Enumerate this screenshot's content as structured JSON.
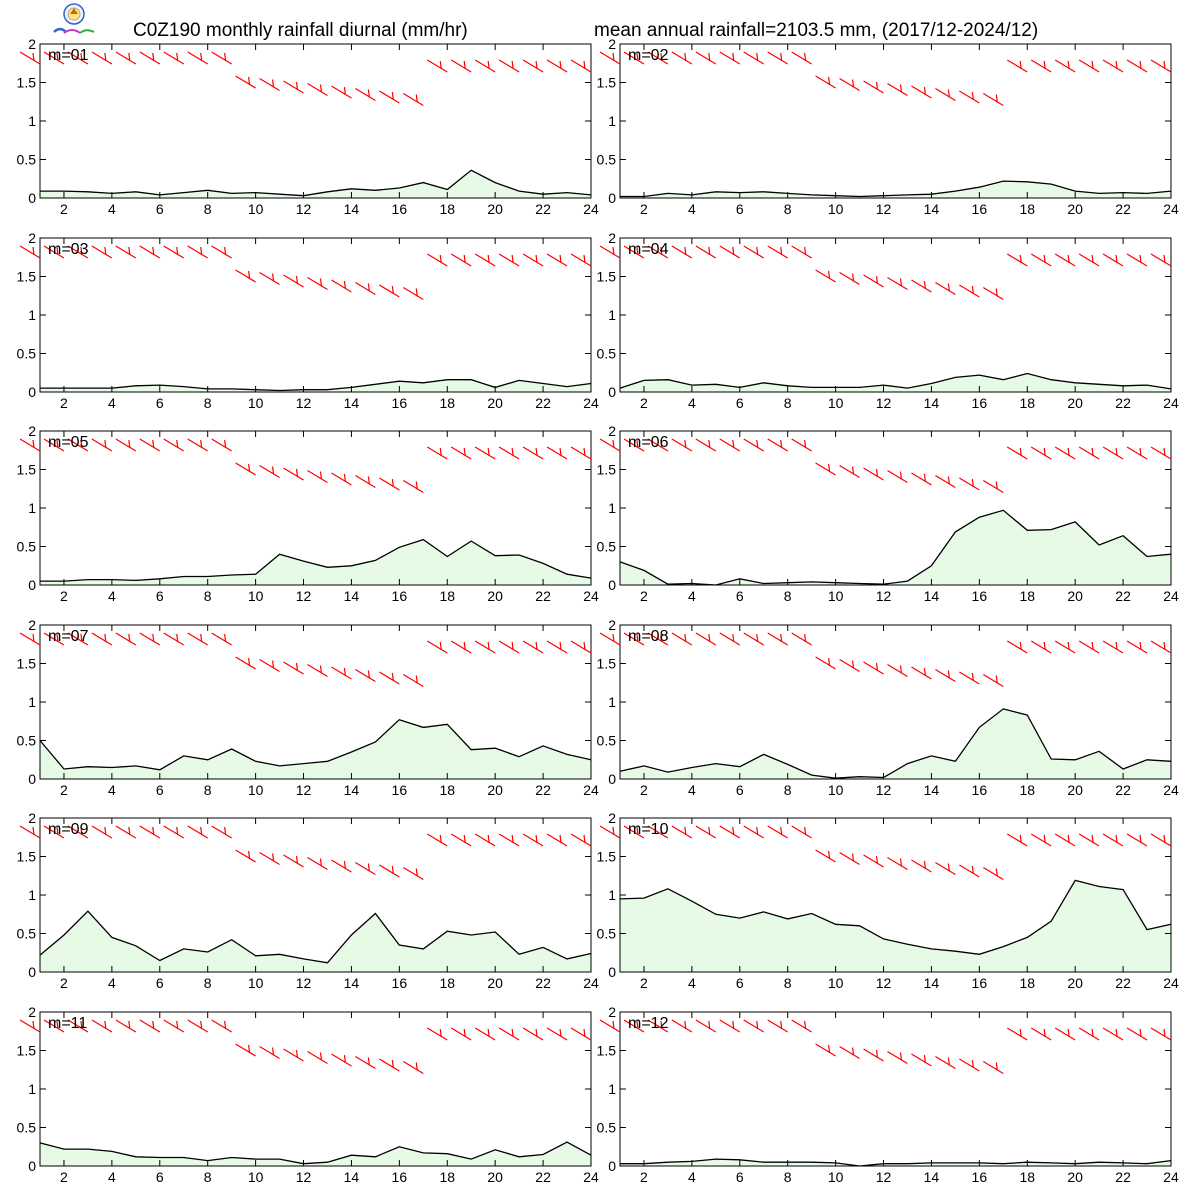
{
  "header": {
    "title_left": "C0Z190 monthly rainfall diurnal (mm/hr)",
    "title_right": "mean annual rainfall=2103.5 mm, (2017/12-2024/12)",
    "logo_icon": "lab-logo-icon"
  },
  "colors": {
    "fill": "#e6fae6",
    "line": "#000000",
    "barb": "#ff0000"
  },
  "chart_data": [
    {
      "type": "area",
      "label": "m=01",
      "x": [
        1,
        2,
        3,
        4,
        5,
        6,
        7,
        8,
        9,
        10,
        11,
        12,
        13,
        14,
        15,
        16,
        17,
        18,
        19,
        20,
        21,
        22,
        23,
        24
      ],
      "values": [
        0.09,
        0.09,
        0.08,
        0.06,
        0.08,
        0.04,
        0.07,
        0.1,
        0.06,
        0.07,
        0.05,
        0.03,
        0.08,
        0.12,
        0.1,
        0.13,
        0.2,
        0.11,
        0.36,
        0.2,
        0.09,
        0.05,
        0.07,
        0.04
      ],
      "xticks": [
        2,
        4,
        6,
        8,
        10,
        12,
        14,
        16,
        18,
        20,
        22,
        24
      ],
      "yticks": [
        0,
        0.5,
        1,
        1.5,
        2
      ],
      "xlim": [
        1,
        24
      ],
      "ylim": [
        0,
        2
      ]
    },
    {
      "type": "area",
      "label": "m=02",
      "x": [
        1,
        2,
        3,
        4,
        5,
        6,
        7,
        8,
        9,
        10,
        11,
        12,
        13,
        14,
        15,
        16,
        17,
        18,
        19,
        20,
        21,
        22,
        23,
        24
      ],
      "values": [
        0.02,
        0.02,
        0.06,
        0.04,
        0.08,
        0.07,
        0.08,
        0.06,
        0.04,
        0.03,
        0.02,
        0.03,
        0.04,
        0.05,
        0.09,
        0.14,
        0.22,
        0.21,
        0.18,
        0.09,
        0.06,
        0.07,
        0.06,
        0.09
      ],
      "xticks": [
        2,
        4,
        6,
        8,
        10,
        12,
        14,
        16,
        18,
        20,
        22,
        24
      ],
      "yticks": [
        0,
        0.5,
        1,
        1.5,
        2
      ],
      "xlim": [
        1,
        24
      ],
      "ylim": [
        0,
        2
      ]
    },
    {
      "type": "area",
      "label": "m=03",
      "x": [
        1,
        2,
        3,
        4,
        5,
        6,
        7,
        8,
        9,
        10,
        11,
        12,
        13,
        14,
        15,
        16,
        17,
        18,
        19,
        20,
        21,
        22,
        23,
        24
      ],
      "values": [
        0.05,
        0.05,
        0.05,
        0.05,
        0.08,
        0.09,
        0.07,
        0.04,
        0.04,
        0.03,
        0.02,
        0.03,
        0.03,
        0.06,
        0.1,
        0.14,
        0.12,
        0.16,
        0.16,
        0.06,
        0.15,
        0.11,
        0.07,
        0.11
      ],
      "xticks": [
        2,
        4,
        6,
        8,
        10,
        12,
        14,
        16,
        18,
        20,
        22,
        24
      ],
      "yticks": [
        0,
        0.5,
        1,
        1.5,
        2
      ],
      "xlim": [
        1,
        24
      ],
      "ylim": [
        0,
        2
      ]
    },
    {
      "type": "area",
      "label": "m=04",
      "x": [
        1,
        2,
        3,
        4,
        5,
        6,
        7,
        8,
        9,
        10,
        11,
        12,
        13,
        14,
        15,
        16,
        17,
        18,
        19,
        20,
        21,
        22,
        23,
        24
      ],
      "values": [
        0.05,
        0.15,
        0.16,
        0.09,
        0.1,
        0.06,
        0.12,
        0.08,
        0.06,
        0.06,
        0.06,
        0.09,
        0.05,
        0.11,
        0.19,
        0.22,
        0.16,
        0.24,
        0.16,
        0.12,
        0.1,
        0.08,
        0.09,
        0.04
      ],
      "xticks": [
        2,
        4,
        6,
        8,
        10,
        12,
        14,
        16,
        18,
        20,
        22,
        24
      ],
      "yticks": [
        0,
        0.5,
        1,
        1.5,
        2
      ],
      "xlim": [
        1,
        24
      ],
      "ylim": [
        0,
        2
      ]
    },
    {
      "type": "area",
      "label": "m=05",
      "x": [
        1,
        2,
        3,
        4,
        5,
        6,
        7,
        8,
        9,
        10,
        11,
        12,
        13,
        14,
        15,
        16,
        17,
        18,
        19,
        20,
        21,
        22,
        23,
        24
      ],
      "values": [
        0.05,
        0.05,
        0.07,
        0.07,
        0.06,
        0.08,
        0.11,
        0.11,
        0.13,
        0.14,
        0.4,
        0.31,
        0.23,
        0.25,
        0.32,
        0.49,
        0.59,
        0.37,
        0.57,
        0.38,
        0.39,
        0.28,
        0.14,
        0.09
      ],
      "xticks": [
        2,
        4,
        6,
        8,
        10,
        12,
        14,
        16,
        18,
        20,
        22,
        24
      ],
      "yticks": [
        0,
        0.5,
        1,
        1.5,
        2
      ],
      "xlim": [
        1,
        24
      ],
      "ylim": [
        0,
        2
      ]
    },
    {
      "type": "area",
      "label": "m=06",
      "x": [
        1,
        2,
        3,
        4,
        5,
        6,
        7,
        8,
        9,
        10,
        11,
        12,
        13,
        14,
        15,
        16,
        17,
        18,
        19,
        20,
        21,
        22,
        23,
        24
      ],
      "values": [
        0.3,
        0.19,
        0.01,
        0.02,
        0.0,
        0.08,
        0.02,
        0.03,
        0.04,
        0.03,
        0.02,
        0.01,
        0.05,
        0.25,
        0.69,
        0.88,
        0.97,
        0.71,
        0.72,
        0.82,
        0.52,
        0.64,
        0.37,
        0.4
      ],
      "xticks": [
        2,
        4,
        6,
        8,
        10,
        12,
        14,
        16,
        18,
        20,
        22,
        24
      ],
      "yticks": [
        0,
        0.5,
        1,
        1.5,
        2
      ],
      "xlim": [
        1,
        24
      ],
      "ylim": [
        0,
        2
      ]
    },
    {
      "type": "area",
      "label": "m=07",
      "x": [
        1,
        2,
        3,
        4,
        5,
        6,
        7,
        8,
        9,
        10,
        11,
        12,
        13,
        14,
        15,
        16,
        17,
        18,
        19,
        20,
        21,
        22,
        23,
        24
      ],
      "values": [
        0.5,
        0.13,
        0.16,
        0.15,
        0.17,
        0.12,
        0.3,
        0.25,
        0.39,
        0.23,
        0.17,
        0.2,
        0.23,
        0.35,
        0.48,
        0.77,
        0.67,
        0.71,
        0.38,
        0.4,
        0.29,
        0.43,
        0.32,
        0.25
      ],
      "xticks": [
        2,
        4,
        6,
        8,
        10,
        12,
        14,
        16,
        18,
        20,
        22,
        24
      ],
      "yticks": [
        0,
        0.5,
        1,
        1.5,
        2
      ],
      "xlim": [
        1,
        24
      ],
      "ylim": [
        0,
        2
      ]
    },
    {
      "type": "area",
      "label": "m=08",
      "x": [
        1,
        2,
        3,
        4,
        5,
        6,
        7,
        8,
        9,
        10,
        11,
        12,
        13,
        14,
        15,
        16,
        17,
        18,
        19,
        20,
        21,
        22,
        23,
        24
      ],
      "values": [
        0.1,
        0.17,
        0.09,
        0.15,
        0.2,
        0.16,
        0.32,
        0.19,
        0.05,
        0.01,
        0.03,
        0.02,
        0.2,
        0.3,
        0.23,
        0.67,
        0.91,
        0.83,
        0.26,
        0.25,
        0.36,
        0.13,
        0.25,
        0.23
      ],
      "xticks": [
        2,
        4,
        6,
        8,
        10,
        12,
        14,
        16,
        18,
        20,
        22,
        24
      ],
      "yticks": [
        0,
        0.5,
        1,
        1.5,
        2
      ],
      "xlim": [
        1,
        24
      ],
      "ylim": [
        0,
        2
      ]
    },
    {
      "type": "area",
      "label": "m=09",
      "x": [
        1,
        2,
        3,
        4,
        5,
        6,
        7,
        8,
        9,
        10,
        11,
        12,
        13,
        14,
        15,
        16,
        17,
        18,
        19,
        20,
        21,
        22,
        23,
        24
      ],
      "values": [
        0.22,
        0.48,
        0.79,
        0.45,
        0.34,
        0.15,
        0.3,
        0.26,
        0.42,
        0.21,
        0.23,
        0.17,
        0.12,
        0.48,
        0.76,
        0.35,
        0.3,
        0.53,
        0.48,
        0.52,
        0.23,
        0.32,
        0.17,
        0.24
      ],
      "xticks": [
        2,
        4,
        6,
        8,
        10,
        12,
        14,
        16,
        18,
        20,
        22,
        24
      ],
      "yticks": [
        0,
        0.5,
        1,
        1.5,
        2
      ],
      "xlim": [
        1,
        24
      ],
      "ylim": [
        0,
        2
      ]
    },
    {
      "type": "area",
      "label": "m=10",
      "x": [
        1,
        2,
        3,
        4,
        5,
        6,
        7,
        8,
        9,
        10,
        11,
        12,
        13,
        14,
        15,
        16,
        17,
        18,
        19,
        20,
        21,
        22,
        23,
        24
      ],
      "values": [
        0.95,
        0.96,
        1.08,
        0.92,
        0.75,
        0.7,
        0.78,
        0.69,
        0.76,
        0.62,
        0.6,
        0.43,
        0.36,
        0.3,
        0.27,
        0.23,
        0.33,
        0.45,
        0.66,
        1.19,
        1.11,
        1.07,
        0.55,
        0.62
      ],
      "xticks": [
        2,
        4,
        6,
        8,
        10,
        12,
        14,
        16,
        18,
        20,
        22,
        24
      ],
      "yticks": [
        0,
        0.5,
        1,
        1.5,
        2
      ],
      "xlim": [
        1,
        24
      ],
      "ylim": [
        0,
        2
      ]
    },
    {
      "type": "area",
      "label": "m=11",
      "x": [
        1,
        2,
        3,
        4,
        5,
        6,
        7,
        8,
        9,
        10,
        11,
        12,
        13,
        14,
        15,
        16,
        17,
        18,
        19,
        20,
        21,
        22,
        23,
        24
      ],
      "values": [
        0.3,
        0.22,
        0.22,
        0.19,
        0.12,
        0.11,
        0.11,
        0.07,
        0.11,
        0.09,
        0.09,
        0.03,
        0.05,
        0.14,
        0.12,
        0.25,
        0.17,
        0.16,
        0.09,
        0.21,
        0.12,
        0.15,
        0.31,
        0.14
      ],
      "xticks": [
        2,
        4,
        6,
        8,
        10,
        12,
        14,
        16,
        18,
        20,
        22,
        24
      ],
      "yticks": [
        0,
        0.5,
        1,
        1.5,
        2
      ],
      "xlim": [
        1,
        24
      ],
      "ylim": [
        0,
        2
      ]
    },
    {
      "type": "area",
      "label": "m=12",
      "x": [
        1,
        2,
        3,
        4,
        5,
        6,
        7,
        8,
        9,
        10,
        11,
        12,
        13,
        14,
        15,
        16,
        17,
        18,
        19,
        20,
        21,
        22,
        23,
        24
      ],
      "values": [
        0.03,
        0.03,
        0.05,
        0.06,
        0.09,
        0.08,
        0.05,
        0.05,
        0.05,
        0.04,
        0.0,
        0.03,
        0.03,
        0.04,
        0.04,
        0.04,
        0.03,
        0.05,
        0.04,
        0.03,
        0.05,
        0.04,
        0.03,
        0.07
      ],
      "xticks": [
        2,
        4,
        6,
        8,
        10,
        12,
        14,
        16,
        18,
        20,
        22,
        24
      ],
      "yticks": [
        0,
        0.5,
        1,
        1.5,
        2
      ],
      "xlim": [
        1,
        24
      ],
      "ylim": [
        0,
        2
      ]
    }
  ]
}
